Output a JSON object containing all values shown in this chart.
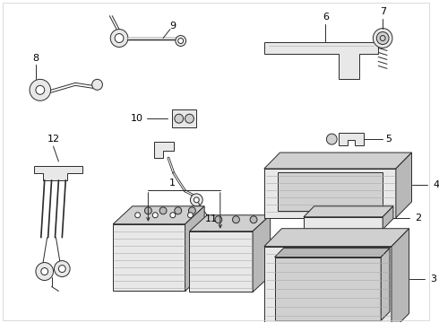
{
  "background_color": "#ffffff",
  "line_color": "#2a2a2a",
  "label_color": "#000000",
  "fig_width": 4.9,
  "fig_height": 3.6,
  "dpi": 100,
  "lw": 0.7,
  "hatch_color": "#888888",
  "shade1": "#e8e8e8",
  "shade2": "#d0d0d0",
  "shade3": "#b8b8b8"
}
